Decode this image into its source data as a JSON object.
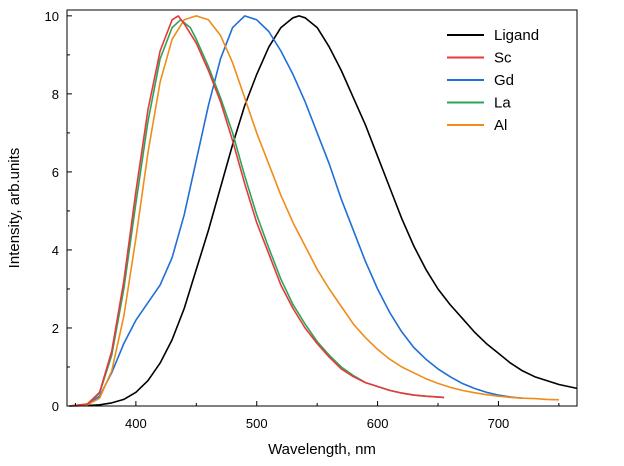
{
  "chart_data": {
    "type": "line",
    "xlabel": "Wavelength, nm",
    "ylabel": "Intensity, arb.units",
    "xlim": [
      343,
      765
    ],
    "ylim": [
      0,
      10.15
    ],
    "xticks": [
      400,
      500,
      600,
      700
    ],
    "yticks": [
      0,
      2,
      4,
      6,
      8,
      10
    ],
    "grid": false,
    "legend_position": "top-right",
    "series": [
      {
        "name": "Ligand",
        "color": "#000000",
        "x": [
          345,
          360,
          370,
          380,
          390,
          400,
          410,
          420,
          430,
          440,
          450,
          460,
          470,
          480,
          490,
          500,
          510,
          520,
          530,
          535,
          540,
          550,
          560,
          570,
          580,
          590,
          600,
          610,
          620,
          630,
          640,
          650,
          660,
          670,
          680,
          690,
          700,
          710,
          720,
          730,
          740,
          750,
          765
        ],
        "y": [
          0.0,
          0.01,
          0.03,
          0.08,
          0.17,
          0.35,
          0.65,
          1.1,
          1.7,
          2.5,
          3.5,
          4.5,
          5.6,
          6.7,
          7.7,
          8.5,
          9.2,
          9.7,
          9.95,
          10.0,
          9.95,
          9.7,
          9.2,
          8.6,
          7.9,
          7.2,
          6.4,
          5.6,
          4.8,
          4.1,
          3.5,
          3.0,
          2.6,
          2.25,
          1.9,
          1.6,
          1.35,
          1.1,
          0.9,
          0.75,
          0.65,
          0.55,
          0.45
        ]
      },
      {
        "name": "Sc",
        "color": "#e8383b",
        "x": [
          345,
          360,
          370,
          380,
          390,
          400,
          410,
          420,
          430,
          435,
          440,
          450,
          460,
          470,
          480,
          490,
          500,
          510,
          520,
          530,
          540,
          550,
          560,
          570,
          580,
          590,
          600,
          610,
          620,
          630,
          640,
          655
        ],
        "y": [
          0.0,
          0.05,
          0.35,
          1.4,
          3.2,
          5.5,
          7.6,
          9.1,
          9.9,
          10.0,
          9.8,
          9.3,
          8.6,
          7.8,
          6.8,
          5.7,
          4.7,
          3.9,
          3.1,
          2.5,
          2.0,
          1.6,
          1.25,
          0.95,
          0.75,
          0.6,
          0.5,
          0.4,
          0.33,
          0.28,
          0.25,
          0.22
        ]
      },
      {
        "name": "Gd",
        "color": "#1f6fd6",
        "x": [
          345,
          360,
          370,
          380,
          390,
          400,
          410,
          420,
          430,
          440,
          450,
          460,
          470,
          480,
          490,
          500,
          510,
          520,
          530,
          540,
          550,
          560,
          570,
          580,
          590,
          600,
          610,
          620,
          630,
          640,
          650,
          660,
          670,
          680,
          690,
          700,
          710,
          720
        ],
        "y": [
          0.0,
          0.04,
          0.25,
          0.85,
          1.6,
          2.2,
          2.65,
          3.1,
          3.8,
          4.9,
          6.3,
          7.7,
          8.9,
          9.7,
          10.0,
          9.9,
          9.6,
          9.1,
          8.5,
          7.8,
          7.0,
          6.2,
          5.3,
          4.5,
          3.7,
          3.0,
          2.4,
          1.9,
          1.5,
          1.2,
          0.95,
          0.75,
          0.58,
          0.45,
          0.35,
          0.28,
          0.23,
          0.2
        ]
      },
      {
        "name": "La",
        "color": "#2ca55a",
        "x": [
          345,
          360,
          370,
          380,
          390,
          400,
          410,
          420,
          430,
          437,
          445,
          450,
          460,
          470,
          480,
          490,
          500,
          510,
          520,
          530,
          540,
          550,
          560,
          570,
          580,
          590,
          600,
          610,
          620,
          630,
          640,
          655
        ],
        "y": [
          0.0,
          0.05,
          0.33,
          1.3,
          3.0,
          5.2,
          7.3,
          8.9,
          9.7,
          9.9,
          9.7,
          9.4,
          8.7,
          7.9,
          7.0,
          5.9,
          4.9,
          4.05,
          3.25,
          2.6,
          2.1,
          1.65,
          1.3,
          1.0,
          0.78,
          0.6,
          0.5,
          0.4,
          0.33,
          0.28,
          0.25,
          0.22
        ]
      },
      {
        "name": "Al",
        "color": "#f08c1a",
        "x": [
          345,
          360,
          370,
          380,
          390,
          400,
          410,
          420,
          430,
          440,
          450,
          460,
          470,
          480,
          490,
          500,
          510,
          520,
          530,
          540,
          550,
          560,
          570,
          580,
          590,
          600,
          610,
          620,
          630,
          640,
          650,
          660,
          670,
          680,
          690,
          700,
          710,
          720,
          730,
          740,
          750
        ],
        "y": [
          0.0,
          0.03,
          0.2,
          0.9,
          2.3,
          4.3,
          6.5,
          8.3,
          9.4,
          9.9,
          10.0,
          9.9,
          9.5,
          8.8,
          7.9,
          7.0,
          6.2,
          5.4,
          4.7,
          4.1,
          3.5,
          3.0,
          2.55,
          2.1,
          1.75,
          1.45,
          1.2,
          1.0,
          0.85,
          0.7,
          0.58,
          0.48,
          0.4,
          0.34,
          0.29,
          0.25,
          0.22,
          0.2,
          0.19,
          0.17,
          0.16
        ]
      }
    ]
  }
}
